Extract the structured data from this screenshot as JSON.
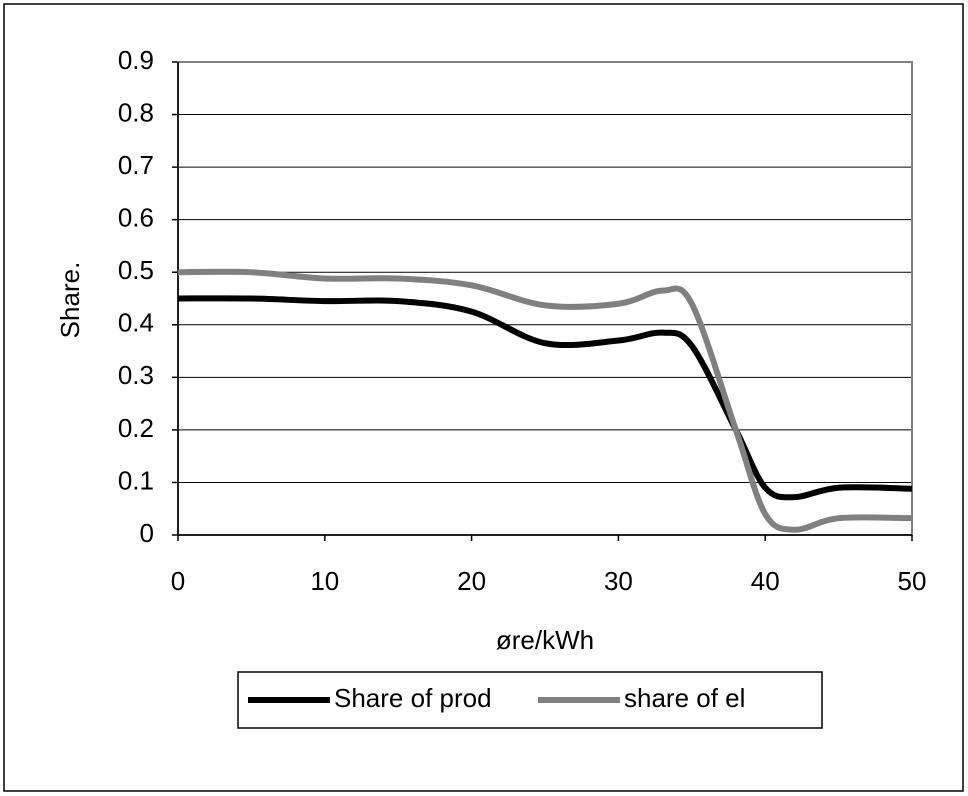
{
  "chart_data": {
    "type": "line",
    "x_label": "øre/kWh",
    "y_label": "Share.",
    "x": [
      0,
      5,
      10,
      15,
      20,
      25,
      30,
      33,
      35,
      38,
      40,
      42,
      45,
      50
    ],
    "series": [
      {
        "name": "Share of prod",
        "color": "#000000",
        "values": [
          0.45,
          0.45,
          0.445,
          0.445,
          0.425,
          0.365,
          0.37,
          0.385,
          0.36,
          0.2,
          0.09,
          0.072,
          0.09,
          0.088
        ]
      },
      {
        "name": "share of el",
        "color": "#808080",
        "values": [
          0.5,
          0.5,
          0.488,
          0.488,
          0.475,
          0.437,
          0.44,
          0.465,
          0.44,
          0.2,
          0.04,
          0.01,
          0.032,
          0.032
        ]
      }
    ],
    "xlim": [
      0,
      50
    ],
    "xticks": [
      0,
      10,
      20,
      30,
      40,
      50
    ],
    "ylim": [
      0,
      0.9
    ],
    "yticks": [
      0,
      0.1,
      0.2,
      0.3,
      0.4,
      0.5,
      0.6,
      0.7,
      0.8,
      0.9
    ],
    "grid": true,
    "legend": "bottom"
  }
}
